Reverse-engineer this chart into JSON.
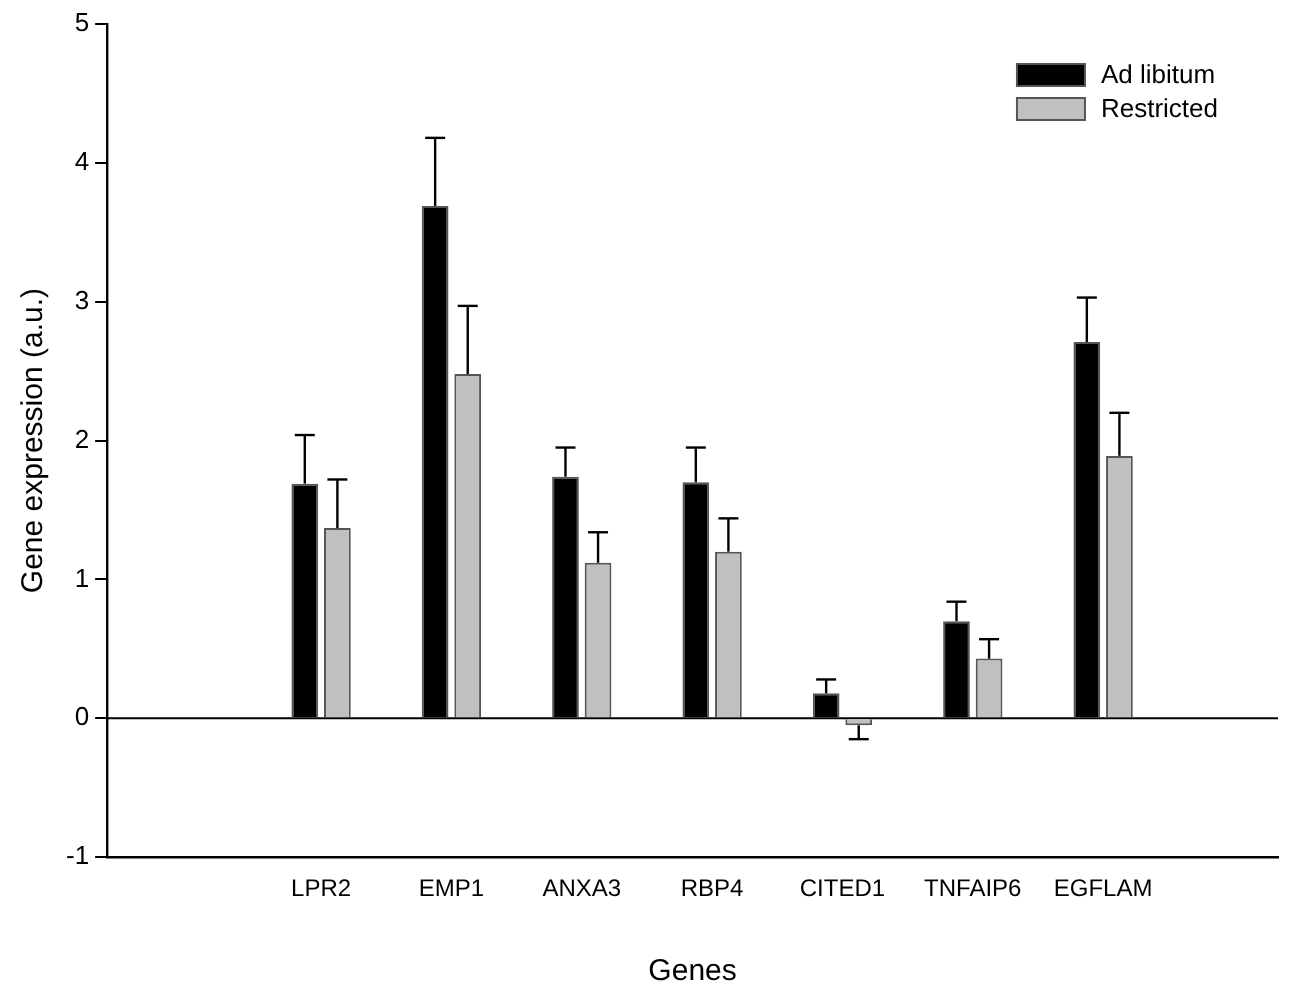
{
  "chart_data": {
    "type": "bar",
    "xlabel": "Genes",
    "ylabel": "Gene expression (a.u.)",
    "categories": [
      "LPR2",
      "EMP1",
      "ANXA3",
      "RBP4",
      "CITED1",
      "TNFAIP6",
      "EGFLAM"
    ],
    "series": [
      {
        "name": "Ad libitum",
        "color": "#000000",
        "values": [
          1.69,
          3.69,
          1.74,
          1.7,
          0.18,
          0.7,
          2.71
        ],
        "errors": [
          [
            1.69,
            2.04
          ],
          [
            3.69,
            4.18
          ],
          [
            1.74,
            1.95
          ],
          [
            1.7,
            1.95
          ],
          [
            0.18,
            0.28
          ],
          [
            0.7,
            0.84
          ],
          [
            2.71,
            3.03
          ]
        ]
      },
      {
        "name": "Restricted",
        "color": "#c0c0c0",
        "values": [
          1.37,
          2.48,
          1.12,
          1.2,
          -0.05,
          0.43,
          1.89
        ],
        "errors": [
          [
            1.37,
            1.72
          ],
          [
            2.48,
            2.97
          ],
          [
            1.12,
            1.34
          ],
          [
            1.2,
            1.44
          ],
          [
            -0.15,
            -0.05
          ],
          [
            0.43,
            0.57
          ],
          [
            1.89,
            2.2
          ]
        ]
      }
    ],
    "ylim": [
      -1,
      5
    ],
    "yticks": [
      -1,
      0,
      1,
      2,
      3,
      4,
      5
    ],
    "grid": false,
    "legend": "top right",
    "ref_lines": [
      {
        "axis": "y",
        "value": 0
      }
    ]
  }
}
